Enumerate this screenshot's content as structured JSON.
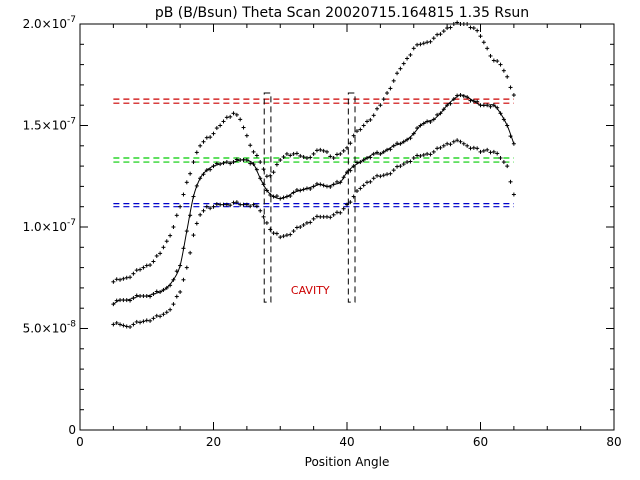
{
  "chart_data": {
    "type": "scatter",
    "title": "pB (B/Bsun) Theta Scan 20020715.164815 1.35 Rsun",
    "xlabel": "Position Angle",
    "ylabel": "",
    "xlim": [
      0,
      80
    ],
    "ylim": [
      0,
      2e-07
    ],
    "x_ticks": [
      {
        "value": 0,
        "label": "0"
      },
      {
        "value": 20,
        "label": "20"
      },
      {
        "value": 40,
        "label": "40"
      },
      {
        "value": 60,
        "label": "60"
      },
      {
        "value": 80,
        "label": "80"
      }
    ],
    "y_ticks": [
      {
        "value": 0,
        "label": "0",
        "exp": ""
      },
      {
        "value": 5e-08,
        "label": "5.0×10",
        "exp": "-8"
      },
      {
        "value": 1e-07,
        "label": "1.0×10",
        "exp": "-7"
      },
      {
        "value": 1.5e-07,
        "label": "1.5×10",
        "exp": "-7"
      },
      {
        "value": 2e-07,
        "label": "2.0×10",
        "exp": "-7"
      }
    ],
    "grid": false,
    "series": [
      {
        "x": [
          5,
          6,
          7,
          8,
          9,
          10,
          11,
          12,
          13,
          14,
          15,
          16,
          17,
          18,
          19,
          20,
          21,
          22,
          23,
          24,
          25,
          26,
          27,
          28,
          29,
          30,
          31,
          32,
          33,
          34,
          35,
          36,
          37,
          38,
          39,
          40,
          41,
          42,
          43,
          44,
          45,
          46,
          47,
          48,
          49,
          50,
          51,
          52,
          53,
          54,
          55,
          56,
          57,
          58,
          59,
          60,
          61,
          62,
          63,
          64,
          65
        ],
        "y": [
          7.3e-08,
          7.4e-08,
          7.5e-08,
          7.7e-08,
          7.9e-08,
          8.1e-08,
          8.3e-08,
          8.7e-08,
          9.3e-08,
          1e-07,
          1.1e-07,
          1.22e-07,
          1.32e-07,
          1.4e-07,
          1.44e-07,
          1.46e-07,
          1.5e-07,
          1.54e-07,
          1.56e-07,
          1.53e-07,
          1.45e-07,
          1.37e-07,
          1.32e-07,
          1.25e-07,
          1.27e-07,
          1.33e-07,
          1.36e-07,
          1.36e-07,
          1.35e-07,
          1.34e-07,
          1.36e-07,
          1.38e-07,
          1.37e-07,
          1.34e-07,
          1.36e-07,
          1.39e-07,
          1.45e-07,
          1.48e-07,
          1.52e-07,
          1.55e-07,
          1.6e-07,
          1.66e-07,
          1.72e-07,
          1.78e-07,
          1.83e-07,
          1.88e-07,
          1.9e-07,
          1.91e-07,
          1.93e-07,
          1.95e-07,
          1.98e-07,
          2e-07,
          2e-07,
          2e-07,
          1.98e-07,
          1.94e-07,
          1.88e-07,
          1.82e-07,
          1.8e-07,
          1.74e-07,
          1.65e-07
        ]
      },
      {
        "x": [
          5,
          6,
          7,
          8,
          9,
          10,
          11,
          12,
          13,
          14,
          15,
          16,
          17,
          18,
          19,
          20,
          21,
          22,
          23,
          24,
          25,
          26,
          27,
          28,
          29,
          30,
          31,
          32,
          33,
          34,
          35,
          36,
          37,
          38,
          39,
          40,
          41,
          42,
          43,
          44,
          45,
          46,
          47,
          48,
          49,
          50,
          51,
          52,
          53,
          54,
          55,
          56,
          57,
          58,
          59,
          60,
          61,
          62,
          63,
          64,
          65
        ],
        "y": [
          6.2e-08,
          6.4e-08,
          6.4e-08,
          6.5e-08,
          6.6e-08,
          6.6e-08,
          6.7e-08,
          6.8e-08,
          7e-08,
          7.4e-08,
          8.1e-08,
          9.8e-08,
          1.15e-07,
          1.24e-07,
          1.28e-07,
          1.3e-07,
          1.31e-07,
          1.32e-07,
          1.32e-07,
          1.33e-07,
          1.33e-07,
          1.31e-07,
          1.24e-07,
          1.18e-07,
          1.15e-07,
          1.14e-07,
          1.15e-07,
          1.17e-07,
          1.18e-07,
          1.19e-07,
          1.2e-07,
          1.21e-07,
          1.2e-07,
          1.21e-07,
          1.22e-07,
          1.27e-07,
          1.3e-07,
          1.32e-07,
          1.34e-07,
          1.36e-07,
          1.36e-07,
          1.38e-07,
          1.4e-07,
          1.41e-07,
          1.43e-07,
          1.46e-07,
          1.5e-07,
          1.52e-07,
          1.53e-07,
          1.56e-07,
          1.6e-07,
          1.63e-07,
          1.65e-07,
          1.64e-07,
          1.62e-07,
          1.6e-07,
          1.6e-07,
          1.6e-07,
          1.56e-07,
          1.5e-07,
          1.41e-07
        ]
      },
      {
        "x": [
          5,
          6,
          7,
          8,
          9,
          10,
          11,
          12,
          13,
          14,
          15,
          16,
          17,
          18,
          19,
          20,
          21,
          22,
          23,
          24,
          25,
          26,
          27,
          28,
          29,
          30,
          31,
          32,
          33,
          34,
          35,
          36,
          37,
          38,
          39,
          40,
          41,
          42,
          43,
          44,
          45,
          46,
          47,
          48,
          49,
          50,
          51,
          52,
          53,
          54,
          55,
          56,
          57,
          58,
          59,
          60,
          61,
          62,
          63,
          64,
          65
        ],
        "y": [
          5.2e-08,
          5.2e-08,
          5.1e-08,
          5.2e-08,
          5.3e-08,
          5.4e-08,
          5.5e-08,
          5.6e-08,
          5.8e-08,
          6.2e-08,
          6.8e-08,
          8e-08,
          9.6e-08,
          1.06e-07,
          1.1e-07,
          1.1e-07,
          1.11e-07,
          1.11e-07,
          1.12e-07,
          1.11e-07,
          1.11e-07,
          1.11e-07,
          1.08e-07,
          1.02e-07,
          9.7e-08,
          9.5e-08,
          9.6e-08,
          9.8e-08,
          1e-07,
          1.02e-07,
          1.04e-07,
          1.05e-07,
          1.05e-07,
          1.06e-07,
          1.07e-07,
          1.11e-07,
          1.15e-07,
          1.19e-07,
          1.22e-07,
          1.24e-07,
          1.25e-07,
          1.26e-07,
          1.28e-07,
          1.3e-07,
          1.32e-07,
          1.34e-07,
          1.35e-07,
          1.36e-07,
          1.37e-07,
          1.39e-07,
          1.41e-07,
          1.42e-07,
          1.42e-07,
          1.4e-07,
          1.39e-07,
          1.37e-07,
          1.38e-07,
          1.37e-07,
          1.34e-07,
          1.3e-07,
          1.16e-07
        ]
      }
    ],
    "smooth_line": {
      "x": [
        5,
        6,
        7,
        8,
        9,
        10,
        11,
        12,
        13,
        14,
        15,
        16,
        17,
        18,
        19,
        20,
        21,
        22,
        23,
        24,
        25,
        26,
        27,
        28,
        29,
        30,
        31,
        32,
        33,
        34,
        35,
        36,
        37,
        38,
        39,
        40,
        41,
        42,
        43,
        44,
        45,
        46,
        47,
        48,
        49,
        50,
        51,
        52,
        53,
        54,
        55,
        56,
        57,
        58,
        59,
        60,
        61,
        62,
        63,
        64,
        65
      ],
      "y": [
        6.2e-08,
        6.4e-08,
        6.4e-08,
        6.5e-08,
        6.6e-08,
        6.6e-08,
        6.7e-08,
        6.8e-08,
        7e-08,
        7.4e-08,
        8.1e-08,
        9.8e-08,
        1.15e-07,
        1.24e-07,
        1.28e-07,
        1.3e-07,
        1.31e-07,
        1.32e-07,
        1.32e-07,
        1.33e-07,
        1.33e-07,
        1.31e-07,
        1.24e-07,
        1.18e-07,
        1.15e-07,
        1.14e-07,
        1.15e-07,
        1.17e-07,
        1.18e-07,
        1.19e-07,
        1.2e-07,
        1.21e-07,
        1.2e-07,
        1.21e-07,
        1.22e-07,
        1.27e-07,
        1.3e-07,
        1.32e-07,
        1.34e-07,
        1.36e-07,
        1.36e-07,
        1.38e-07,
        1.4e-07,
        1.41e-07,
        1.43e-07,
        1.46e-07,
        1.5e-07,
        1.52e-07,
        1.53e-07,
        1.56e-07,
        1.6e-07,
        1.63e-07,
        1.65e-07,
        1.64e-07,
        1.62e-07,
        1.6e-07,
        1.6e-07,
        1.6e-07,
        1.56e-07,
        1.5e-07,
        1.41e-07
      ]
    },
    "reference_lines": [
      {
        "y": 1.63e-07,
        "x_from": 5,
        "x_to": 65,
        "color": "#cc0000"
      },
      {
        "y": 1.61e-07,
        "x_from": 5,
        "x_to": 65,
        "color": "#cc0000"
      },
      {
        "y": 1.34e-07,
        "x_from": 5,
        "x_to": 65,
        "color": "#00cc00"
      },
      {
        "y": 1.32e-07,
        "x_from": 5,
        "x_to": 65,
        "color": "#00cc00"
      },
      {
        "y": 1.115e-07,
        "x_from": 5,
        "x_to": 65,
        "color": "#0000cc"
      },
      {
        "y": 1.1e-07,
        "x_from": 5,
        "x_to": 65,
        "color": "#0000cc"
      }
    ],
    "cavity_boxes": [
      {
        "x0": 27.6,
        "x1": 28.6,
        "y0": 6.3e-08,
        "y1": 1.66e-07
      },
      {
        "x0": 40.2,
        "x1": 41.2,
        "y0": 6.3e-08,
        "y1": 1.66e-07
      }
    ],
    "annotation": {
      "text": "CAVITY",
      "x": 34.5,
      "y": 6.9e-08,
      "color": "#cc0000"
    }
  }
}
